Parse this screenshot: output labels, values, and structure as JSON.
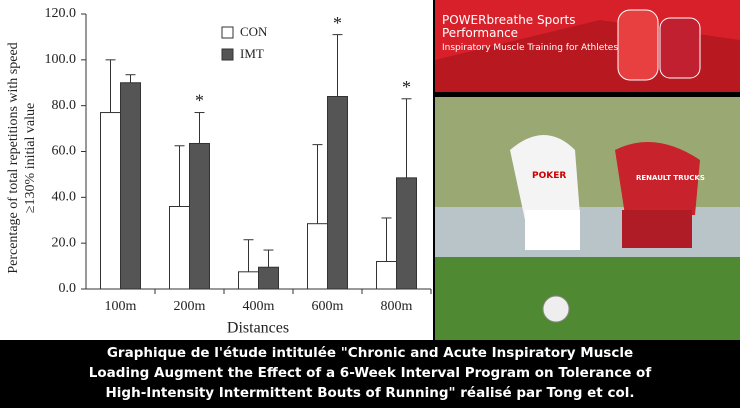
{
  "chart_data": {
    "type": "bar",
    "ylabel": [
      "Percentage of total repetitions with speed",
      "≥130% initial value"
    ],
    "xlabel": "Distances",
    "categories": [
      "100m",
      "200m",
      "400m",
      "600m",
      "800m"
    ],
    "series": [
      {
        "name": "CON",
        "color": "#ffffff",
        "values": [
          77,
          36,
          7.5,
          28.5,
          12
        ],
        "errors": [
          23,
          26.5,
          14,
          34.5,
          19
        ]
      },
      {
        "name": "IMT",
        "color": "#555555",
        "values": [
          90,
          63.5,
          9.5,
          84,
          48.5
        ],
        "errors": [
          3.5,
          13.5,
          7.5,
          27,
          34.5
        ]
      }
    ],
    "significance_labels": [
      null,
      "*",
      null,
      "*",
      "*"
    ],
    "ylim": [
      0,
      120
    ],
    "yticks": [
      {
        "value": 0,
        "label": "0.0"
      },
      {
        "value": 20,
        "label": "20.0"
      },
      {
        "value": 40,
        "label": "40.0"
      },
      {
        "value": 60,
        "label": "60.0"
      },
      {
        "value": 80,
        "label": "80.0"
      },
      {
        "value": 100,
        "label": "100.0"
      },
      {
        "value": 120,
        "label": "120.0"
      }
    ],
    "grid": false
  },
  "banner": {
    "brand": "POWERbreathe Sports",
    "line2": "Performance",
    "tagline": "Inspiratory Muscle Training for Athletes"
  },
  "photo": {
    "jersey1": "POKER",
    "jersey2": "RENAULT TRUCKS"
  },
  "caption": [
    "Graphique de l'étude intitulée \"Chronic and Acute Inspiratory Muscle",
    "Loading Augment the Effect of a 6-Week Interval Program on Tolerance of",
    "High-Intensity Intermittent Bouts of Running\" réalisé par Tong et col."
  ]
}
